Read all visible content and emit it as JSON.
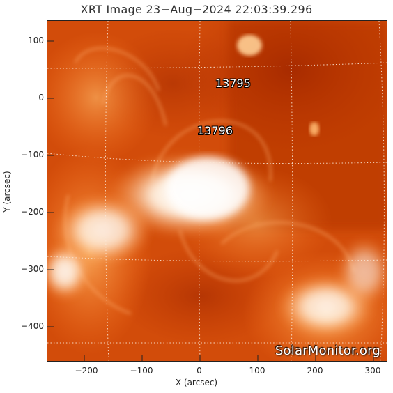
{
  "title": "XRT Image 23−Aug−2024 22:03:39.296",
  "x_axis": {
    "label": "X (arcsec)",
    "ticks": [
      "−200",
      "−100",
      "0",
      "100",
      "200",
      "300"
    ]
  },
  "y_axis": {
    "label": "Y (arcsec)",
    "ticks": [
      "100",
      "0",
      "−100",
      "−200",
      "−300",
      "−400"
    ]
  },
  "active_regions": [
    {
      "id": "13795"
    },
    {
      "id": "13796"
    }
  ],
  "watermark": "SolarMonitor.org",
  "colors": {
    "corona_dark": "#b83200",
    "corona_mid": "#e35f10",
    "corona_bright": "#ffe7c6",
    "grid": "#fbe7d6"
  }
}
